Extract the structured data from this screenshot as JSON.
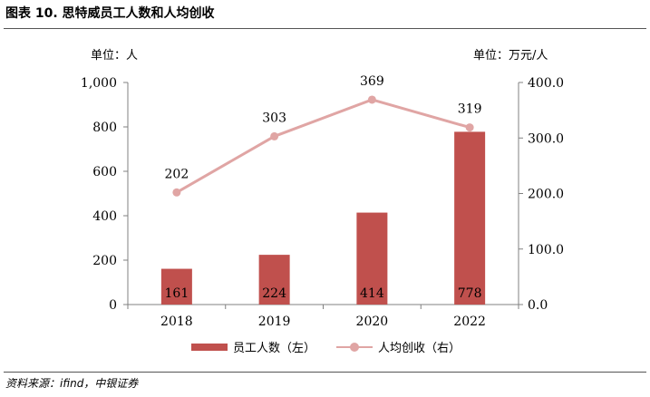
{
  "header": {
    "title": "图表 10. 思特威员工人数和人均创收"
  },
  "units": {
    "left": "单位：人",
    "right": "单位：万元/人"
  },
  "footer": {
    "source": "资料来源：ifind，中银证券"
  },
  "colors": {
    "bar": "#c0504d",
    "line": "#e0a5a4",
    "axis": "#808080"
  },
  "chart_data": {
    "type": "bar",
    "categories": [
      "2018",
      "2019",
      "2020",
      "2022"
    ],
    "series": [
      {
        "name": "员工人数（左）",
        "type": "bar",
        "axis": "left",
        "values": [
          161,
          224,
          414,
          778
        ]
      },
      {
        "name": "人均创收（右）",
        "type": "line",
        "axis": "right",
        "values": [
          202,
          303,
          369,
          319
        ]
      }
    ],
    "y_left": {
      "lim": [
        0,
        1000
      ],
      "ticks": [
        "0",
        "200",
        "400",
        "600",
        "800",
        "1,000"
      ]
    },
    "y_right": {
      "lim": [
        0,
        400
      ],
      "ticks": [
        "0.0",
        "100.0",
        "200.0",
        "300.0",
        "400.0"
      ]
    },
    "grid": false,
    "legend_position": "bottom"
  }
}
